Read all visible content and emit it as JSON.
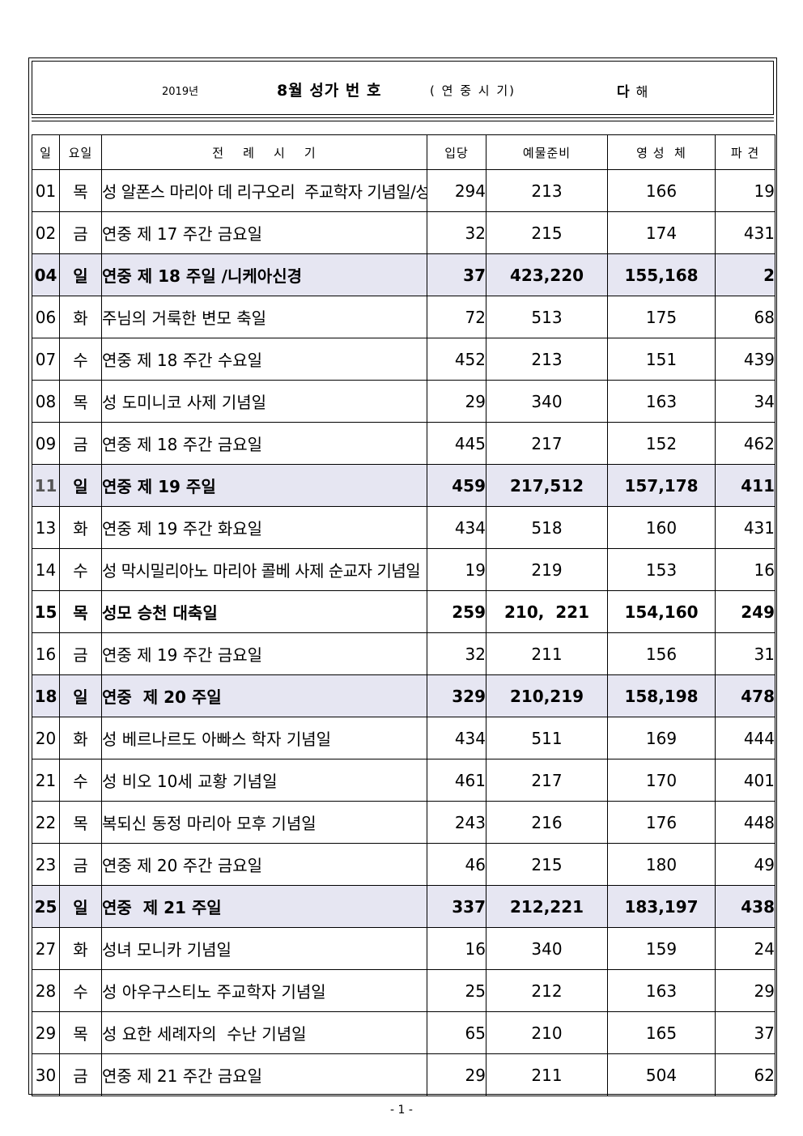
{
  "header": {
    "year": "2019년",
    "title": "8월 성가  번 호",
    "season": "( 연 중 시 기)",
    "year_cycle": "다",
    "year_cycle_suffix": "해"
  },
  "columns": [
    "일",
    "요일",
    "전    례    시    기",
    "입당",
    "예물준비",
    "영 성  체",
    "파 견"
  ],
  "rows": [
    {
      "day": "01",
      "dow": "목",
      "name": "성 알폰스 마리아 데 리구오리  주교학자 기념일/성시간",
      "entrance": "294",
      "offertory": "213",
      "communion": "166",
      "dismissal": "19",
      "kind": "normal"
    },
    {
      "day": "02",
      "dow": "금",
      "name": "연중 제 17 주간 금요일",
      "entrance": "32",
      "offertory": "215",
      "communion": "174",
      "dismissal": "431",
      "kind": "normal"
    },
    {
      "day": "04",
      "dow": "일",
      "name": "연중 제 18 주일 /니케아신경",
      "entrance": "37",
      "offertory": "423,220",
      "communion": "155,168",
      "dismissal": "2",
      "kind": "sunday"
    },
    {
      "day": "06",
      "dow": "화",
      "name": "주님의 거룩한 변모 축일",
      "entrance": "72",
      "offertory": "513",
      "communion": "175",
      "dismissal": "68",
      "kind": "normal"
    },
    {
      "day": "07",
      "dow": "수",
      "name": "연중 제 18 주간 수요일",
      "entrance": "452",
      "offertory": "213",
      "communion": "151",
      "dismissal": "439",
      "kind": "normal"
    },
    {
      "day": "08",
      "dow": "목",
      "name": "성 도미니코 사제 기념일",
      "entrance": "29",
      "offertory": "340",
      "communion": "163",
      "dismissal": "34",
      "kind": "normal"
    },
    {
      "day": "09",
      "dow": "금",
      "name": "연중 제 18 주간 금요일",
      "entrance": "445",
      "offertory": "217",
      "communion": "152",
      "dismissal": "462",
      "kind": "normal"
    },
    {
      "day": "11",
      "dow": "일",
      "name": "연중 제 19 주일",
      "entrance": "459",
      "offertory": "217,512",
      "communion": "157,178",
      "dismissal": "411",
      "kind": "sunday"
    },
    {
      "day": "13",
      "dow": "화",
      "name": "연중 제 19 주간 화요일",
      "entrance": "434",
      "offertory": "518",
      "communion": "160",
      "dismissal": "431",
      "kind": "normal"
    },
    {
      "day": "14",
      "dow": "수",
      "name": "성 막시밀리아노 마리아 콜베 사제 순교자 기념일",
      "entrance": "19",
      "offertory": "219",
      "communion": "153",
      "dismissal": "16",
      "kind": "normal"
    },
    {
      "day": "15",
      "dow": "목",
      "name": "성모 승천 대축일",
      "entrance": "259",
      "offertory": "210,  221",
      "communion": "154,160",
      "dismissal": "249",
      "kind": "solemnity"
    },
    {
      "day": "16",
      "dow": "금",
      "name": "연중 제 19 주간 금요일",
      "entrance": "32",
      "offertory": "211",
      "communion": "156",
      "dismissal": "31",
      "kind": "normal"
    },
    {
      "day": "18",
      "dow": "일",
      "name": "연중  제 20 주일",
      "entrance": "329",
      "offertory": "210,219",
      "communion": "158,198",
      "dismissal": "478",
      "kind": "sunday"
    },
    {
      "day": "20",
      "dow": "화",
      "name": "성 베르나르도 아빠스 학자 기념일",
      "entrance": "434",
      "offertory": "511",
      "communion": "169",
      "dismissal": "444",
      "kind": "normal"
    },
    {
      "day": "21",
      "dow": "수",
      "name": "성 비오 10세 교황 기념일",
      "entrance": "461",
      "offertory": "217",
      "communion": "170",
      "dismissal": "401",
      "kind": "normal"
    },
    {
      "day": "22",
      "dow": "목",
      "name": "복되신 동정 마리아 모후 기념일",
      "entrance": "243",
      "offertory": "216",
      "communion": "176",
      "dismissal": "448",
      "kind": "normal"
    },
    {
      "day": "23",
      "dow": "금",
      "name": "연중 제 20 주간 금요일",
      "entrance": "46",
      "offertory": "215",
      "communion": "180",
      "dismissal": "49",
      "kind": "normal"
    },
    {
      "day": "25",
      "dow": "일",
      "name": "연중  제 21 주일",
      "entrance": "337",
      "offertory": "212,221",
      "communion": "183,197",
      "dismissal": "438",
      "kind": "sunday"
    },
    {
      "day": "27",
      "dow": "화",
      "name": "성녀 모니카 기념일",
      "entrance": "16",
      "offertory": "340",
      "communion": "159",
      "dismissal": "24",
      "kind": "normal"
    },
    {
      "day": "28",
      "dow": "수",
      "name": "성 아우구스티노 주교학자 기념일",
      "entrance": "25",
      "offertory": "212",
      "communion": "163",
      "dismissal": "29",
      "kind": "normal"
    },
    {
      "day": "29",
      "dow": "목",
      "name": "성 요한 세례자의  수난 기념일",
      "entrance": "65",
      "offertory": "210",
      "communion": "165",
      "dismissal": "37",
      "kind": "normal"
    },
    {
      "day": "30",
      "dow": "금",
      "name": "연중 제 21 주간 금요일",
      "entrance": "29",
      "offertory": "211",
      "communion": "504",
      "dismissal": "62",
      "kind": "normal"
    }
  ],
  "footer": {
    "page": "- 1 -"
  }
}
